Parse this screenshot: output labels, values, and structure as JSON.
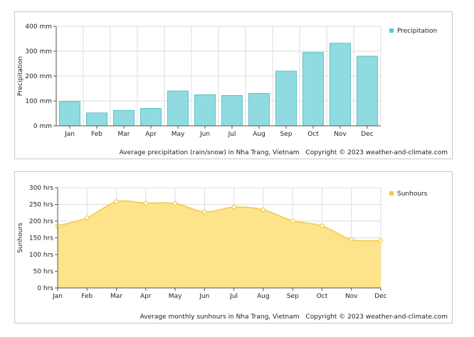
{
  "chart_data": [
    {
      "type": "bar",
      "categories": [
        "Jan",
        "Feb",
        "Mar",
        "Apr",
        "May",
        "Jun",
        "Jul",
        "Aug",
        "Sep",
        "Oct",
        "Nov",
        "Dec"
      ],
      "series": [
        {
          "name": "Precipitation",
          "values": [
            98,
            52,
            62,
            70,
            140,
            125,
            122,
            130,
            220,
            295,
            332,
            280
          ]
        }
      ],
      "ylabel": "Precipitation",
      "ylim": [
        0,
        400
      ],
      "yticks": [
        0,
        100,
        200,
        300,
        400
      ],
      "ytick_labels": [
        "0 mm",
        "100 mm",
        "200 mm",
        "300 mm",
        "400 mm"
      ],
      "grid": true,
      "legend": "top-right",
      "color": "#8fdbe0",
      "stroke": "#3fb3bd",
      "caption": "Average precipitation (rain/snow) in Nha Trang, Vietnam",
      "copyright": "Copyright © 2023  weather-and-climate.com"
    },
    {
      "type": "area",
      "categories": [
        "Jan",
        "Feb",
        "Mar",
        "Apr",
        "May",
        "Jun",
        "Jul",
        "Aug",
        "Sep",
        "Oct",
        "Nov",
        "Dec"
      ],
      "series": [
        {
          "name": "Sunhours",
          "values": [
            186,
            210,
            258,
            254,
            253,
            228,
            242,
            234,
            201,
            186,
            145,
            142
          ]
        }
      ],
      "ylabel": "Sunhours",
      "ylim": [
        0,
        300
      ],
      "yticks": [
        0,
        50,
        100,
        150,
        200,
        250,
        300
      ],
      "ytick_labels": [
        "0 hrs",
        "50 hrs",
        "100 hrs",
        "150 hrs",
        "200 hrs",
        "250 hrs",
        "300 hrs"
      ],
      "grid": true,
      "legend": "top-right",
      "color": "#fde38a",
      "stroke": "#f5c842",
      "caption": "Average monthly sunhours in Nha Trang, Vietnam",
      "copyright": "Copyright © 2023  weather-and-climate.com"
    }
  ]
}
